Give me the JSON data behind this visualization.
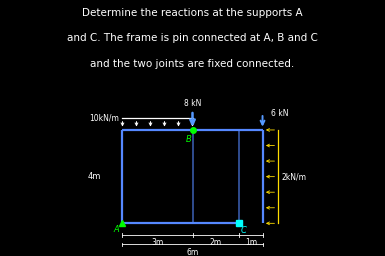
{
  "bg_color": "#000000",
  "text_color": "#ffffff",
  "frame_color": "#5588ff",
  "title_lines": [
    "Determine the reactions at the supports A",
    "and C. The frame is pin connected at A, B and C",
    "and the two joints are fixed connected."
  ],
  "title_fontsize": 7.5,
  "load_8kN_label": "8 kN",
  "load_6kN_label": "6 kN",
  "load_10kNm_label": "10kN/m",
  "load_2kNm_label": "2kN/m",
  "dim_3m_label": "3m",
  "dim_2m_label": "2m",
  "dim_1m_label": "1m",
  "dim_6m_label": "6m",
  "dim_4m_label": "4m",
  "accent_color": "#00ffff",
  "green_color": "#00ff00",
  "yellow_color": "#ffdd00",
  "frame_lw": 1.6
}
